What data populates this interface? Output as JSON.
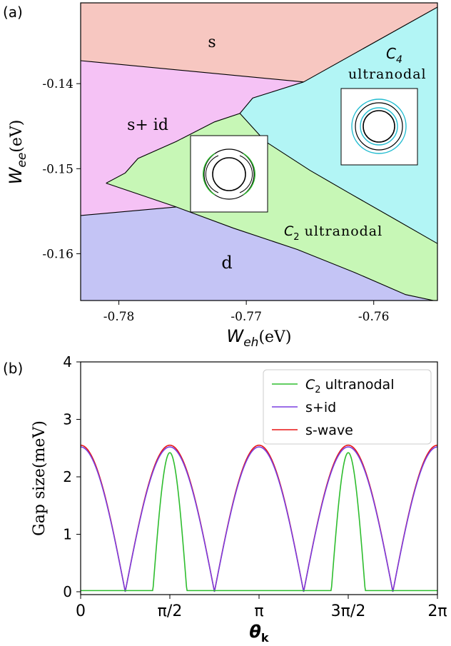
{
  "chart_data": [
    {
      "panel_label": "(a)",
      "type": "phase-diagram",
      "xlabel_var": "W",
      "xlabel_sub": "eh",
      "xlabel_unit": "(eV)",
      "ylabel_var": "W",
      "ylabel_sub": "ee",
      "ylabel_unit": "(eV)",
      "xlim": [
        -0.783,
        -0.755
      ],
      "ylim": [
        -0.1655,
        -0.1305
      ],
      "xticks": [
        -0.78,
        -0.77,
        -0.76
      ],
      "xtick_labels": [
        "-0.78",
        "-0.77",
        "-0.76"
      ],
      "yticks": [
        -0.14,
        -0.15,
        -0.16
      ],
      "ytick_labels": [
        "-0.14",
        "-0.15",
        "-0.16"
      ],
      "regions": [
        {
          "label": "s",
          "color": "#f7c7c1"
        },
        {
          "label": "s+ id",
          "color": "#f5c2f5"
        },
        {
          "label": "C2 ultranodal",
          "color": "#c7f7b6"
        },
        {
          "label": "C4 ultranodal",
          "color": "#b2f5f5"
        },
        {
          "label": "d",
          "color": "#c4c4f5"
        }
      ],
      "region_labels": {
        "s": "s",
        "s_id": "s+ id",
        "d": "d",
        "c4_var": "C",
        "c4_sub": "4",
        "c4_text": "ultranodal",
        "c2_var": "C",
        "c2_sub": "2",
        "c2_text": " ultranodal"
      },
      "boundaries": [
        {
          "name": "s / s+id",
          "x": [
            -0.783,
            -0.7655
          ],
          "y": [
            -0.1373,
            -0.1398
          ]
        },
        {
          "name": "s / C4",
          "x": [
            -0.7655,
            -0.755
          ],
          "y": [
            -0.1398,
            -0.131
          ]
        },
        {
          "name": "s+id / C2",
          "x": [
            -0.7655,
            -0.7695,
            -0.7705,
            -0.7725,
            -0.7755,
            -0.7785,
            -0.7795,
            -0.781
          ],
          "y": [
            -0.1398,
            -0.1417,
            -0.1435,
            -0.1445,
            -0.1468,
            -0.1488,
            -0.1505,
            -0.1517
          ]
        },
        {
          "name": "s+id / d",
          "x": [
            -0.783,
            -0.7755
          ],
          "y": [
            -0.1555,
            -0.1545
          ]
        },
        {
          "name": "C2 lower",
          "x": [
            -0.781,
            -0.7755,
            -0.771,
            -0.766,
            -0.7615,
            -0.7575,
            -0.755
          ],
          "y": [
            -0.1517,
            -0.1545,
            -0.157,
            -0.1595,
            -0.1622,
            -0.1648,
            -0.1656
          ]
        },
        {
          "name": "C2 / C4",
          "x": [
            -0.7705,
            -0.7685,
            -0.765,
            -0.762,
            -0.7585,
            -0.755
          ],
          "y": [
            -0.1435,
            -0.1468,
            -0.1502,
            -0.1528,
            -0.1558,
            -0.1588
          ]
        }
      ]
    },
    {
      "panel_label": "(b)",
      "type": "line",
      "xlabel": "θ",
      "xlabel_sub": "k",
      "ylabel": "Gap size(meV)",
      "xlim": [
        0,
        6.2832
      ],
      "ylim": [
        -0.05,
        4
      ],
      "xticks": [
        0,
        1.5708,
        3.1416,
        4.7124,
        6.2832
      ],
      "xtick_labels": [
        "0",
        "π/2",
        "π",
        "3π/2",
        "2π"
      ],
      "yticks": [
        0,
        1,
        2,
        3,
        4
      ],
      "ytick_labels": [
        "0",
        "1",
        "2",
        "3",
        "4"
      ],
      "legend_position": "upper-right",
      "series": [
        {
          "name": "C2 ultranodal",
          "color": "#2ebd2e",
          "model": "c2",
          "amplitude": 2.42,
          "gap_half_width": 0.3
        },
        {
          "name": "s+id",
          "color": "#7a3fe0",
          "model": "abs_cos2",
          "amplitude": 2.52
        },
        {
          "name": "s-wave",
          "color": "#e81414",
          "model": "abs_cos2",
          "amplitude": 2.55
        }
      ]
    }
  ]
}
